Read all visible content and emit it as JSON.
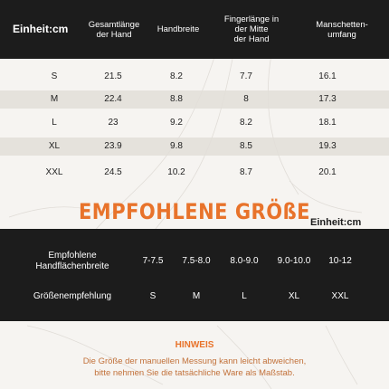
{
  "size_table": {
    "headers": [
      "Einheit:cm",
      "Gesamtlänge\nder Hand",
      "Handbreite",
      "Fingerlänge in\nder Mitte\nder Hand",
      "Manschetten-\numfang"
    ],
    "rows": [
      [
        "S",
        "21.5",
        "8.2",
        "7.7",
        "16.1"
      ],
      [
        "M",
        "22.4",
        "8.8",
        "8",
        "17.3"
      ],
      [
        "L",
        "23",
        "9.2",
        "8.2",
        "18.1"
      ],
      [
        "XL",
        "23.9",
        "9.8",
        "8.5",
        "19.3"
      ],
      [
        "XXL",
        "24.5",
        "10.2",
        "8.7",
        "20.1"
      ]
    ]
  },
  "recommendation": {
    "title": "EMPFOHLENE GRÖßE",
    "unit": "Einheit:cm",
    "palm_width_label": "Empfohlene\nHandflächenbreite",
    "palm_widths": [
      "7-7.5",
      "7.5-8.0",
      "8.0-9.0",
      "9.0-10.0",
      "10-12"
    ],
    "size_label": "Größenempfehlung",
    "sizes": [
      "S",
      "M",
      "L",
      "XL",
      "XXL"
    ]
  },
  "note": {
    "title": "HINWEIS",
    "text": "Die Größe der manuellen Messung kann leicht abweichen,\nbitte nehmen Sie die tatsächliche Ware als Maßstab."
  },
  "colors": {
    "accent": "#e8732b",
    "dark": "#1c1c1c",
    "background": "#f6f4f1"
  }
}
